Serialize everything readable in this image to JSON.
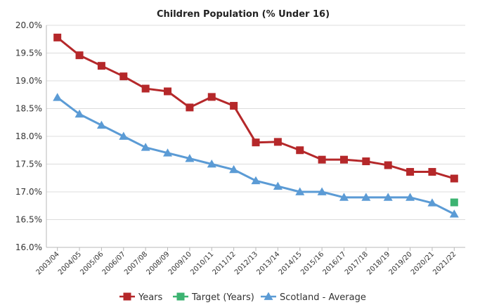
{
  "chart_data": {
    "type": "line",
    "title": "Children Population (% Under 16)",
    "categories": [
      "2003/04",
      "2004/05",
      "2005/06",
      "2006/07",
      "2007/08",
      "2008/09",
      "2009/10",
      "2010/11",
      "2011/12",
      "2012/13",
      "2013/14",
      "2014/15",
      "2015/16",
      "2016/17",
      "2017/18",
      "2018/19",
      "2019/20",
      "2020/21",
      "2021/22"
    ],
    "ylim": [
      16.0,
      20.0
    ],
    "yticks": [
      16.0,
      16.5,
      17.0,
      17.5,
      18.0,
      18.5,
      19.0,
      19.5,
      20.0
    ],
    "ytick_labels": [
      "16.0%",
      "16.5%",
      "17.0%",
      "17.5%",
      "18.0%",
      "18.5%",
      "19.0%",
      "19.5%",
      "20.0%"
    ],
    "grid": true,
    "legend_position": "bottom",
    "series": [
      {
        "name": "Years",
        "color": "#b5282a",
        "marker": "square",
        "values": [
          19.78,
          19.46,
          19.27,
          19.08,
          18.86,
          18.81,
          18.52,
          18.71,
          18.55,
          17.89,
          17.9,
          17.75,
          17.58,
          17.58,
          17.55,
          17.48,
          17.36,
          17.36,
          17.24
        ]
      },
      {
        "name": "Target (Years)",
        "color": "#3cb371",
        "marker": "square",
        "values": [
          null,
          null,
          null,
          null,
          null,
          null,
          null,
          null,
          null,
          null,
          null,
          null,
          null,
          null,
          null,
          null,
          null,
          null,
          16.81
        ]
      },
      {
        "name": "Scotland - Average",
        "color": "#5b9bd5",
        "marker": "triangle",
        "values": [
          18.7,
          18.4,
          18.2,
          18.0,
          17.8,
          17.7,
          17.6,
          17.5,
          17.4,
          17.2,
          17.1,
          17.0,
          17.0,
          16.9,
          16.9,
          16.9,
          16.9,
          16.8,
          16.6
        ]
      }
    ]
  }
}
